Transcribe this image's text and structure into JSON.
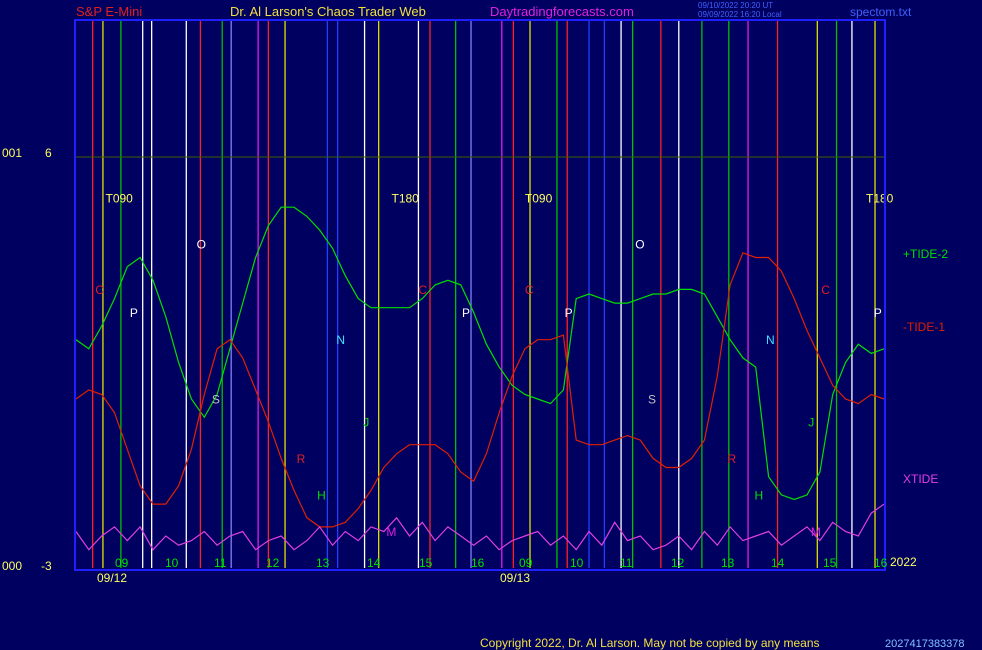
{
  "header": {
    "symbol": "S&P E-Mini",
    "title": "Dr. Al Larson's Chaos Trader Web",
    "site": "Daytradingforecasts.com",
    "stamp_line1": "09/10/2022 20:20 UT",
    "stamp_line2": "09/09/2022 16:20 Local",
    "file": "spectom.txt"
  },
  "footer": {
    "copyright": "Copyright 2022, Dr. Al Larson. May not be copied by any means",
    "corner": "2027417383378"
  },
  "colors": {
    "background": "#000060",
    "frame": "#2020ff",
    "tide_plus": "#00e000",
    "tide_minus": "#e02000",
    "xtide": "#e040e0",
    "header_red": "#e02020",
    "header_yellow": "#f0e040",
    "header_magenta": "#e020e0",
    "stamp_blue": "#4060ff"
  },
  "chart_data": {
    "type": "line",
    "yaxis": {
      "top_label": "6",
      "bottom_label": "-3",
      "top_left": "001",
      "bottom_left": "000",
      "ylim": [
        -3,
        6
      ]
    },
    "xaxis": {
      "hours": [
        "09",
        "10",
        "11",
        "12",
        "13",
        "14",
        "15",
        "16",
        "09",
        "10",
        "11",
        "12",
        "13",
        "14",
        "15",
        "16"
      ],
      "dates": [
        "09/12",
        "09/13"
      ],
      "year": "2022"
    },
    "series": [
      {
        "name": "+TIDE-2",
        "color": "#00e000",
        "values": [
          2.0,
          1.8,
          2.3,
          2.9,
          3.6,
          3.8,
          3.3,
          2.5,
          1.5,
          0.7,
          0.3,
          0.8,
          1.8,
          2.8,
          3.8,
          4.5,
          4.9,
          4.9,
          4.7,
          4.4,
          4.0,
          3.4,
          2.9,
          2.7,
          2.7,
          2.7,
          2.7,
          2.9,
          3.2,
          3.3,
          3.2,
          2.6,
          1.9,
          1.4,
          1.0,
          0.8,
          0.7,
          0.6,
          0.9,
          2.9,
          3.0,
          2.9,
          2.8,
          2.8,
          2.9,
          3.0,
          3.0,
          3.1,
          3.1,
          3.0,
          2.5,
          2.0,
          1.6,
          1.4,
          -1.0,
          -1.4,
          -1.5,
          -1.4,
          -0.9,
          0.8,
          1.5,
          1.9,
          1.7,
          1.8
        ]
      },
      {
        "name": "-TIDE-1",
        "color": "#e02000",
        "values": [
          0.7,
          0.9,
          0.8,
          0.4,
          -0.4,
          -1.2,
          -1.6,
          -1.6,
          -1.2,
          -0.4,
          0.8,
          1.8,
          2.0,
          1.6,
          0.9,
          0.2,
          -0.6,
          -1.3,
          -1.9,
          -2.1,
          -2.1,
          -2.0,
          -1.7,
          -1.3,
          -0.8,
          -0.5,
          -0.3,
          -0.3,
          -0.3,
          -0.5,
          -0.9,
          -1.1,
          -0.5,
          0.4,
          1.2,
          1.8,
          2.0,
          2.0,
          2.1,
          -0.2,
          -0.3,
          -0.3,
          -0.2,
          -0.1,
          -0.2,
          -0.6,
          -0.8,
          -0.8,
          -0.6,
          -0.2,
          1.2,
          3.2,
          3.9,
          3.8,
          3.8,
          3.5,
          2.9,
          2.2,
          1.6,
          1.0,
          0.7,
          0.6,
          0.8,
          0.7
        ]
      },
      {
        "name": "XTIDE",
        "color": "#e040e0",
        "values": [
          -2.2,
          -2.6,
          -2.3,
          -2.1,
          -2.4,
          -2.1,
          -2.6,
          -2.3,
          -2.5,
          -2.4,
          -2.2,
          -2.5,
          -2.3,
          -2.2,
          -2.6,
          -2.4,
          -2.3,
          -2.6,
          -2.4,
          -2.1,
          -2.5,
          -2.2,
          -2.4,
          -2.1,
          -2.2,
          -1.9,
          -2.3,
          -2.0,
          -2.4,
          -2.1,
          -2.3,
          -2.5,
          -2.3,
          -2.6,
          -2.4,
          -2.3,
          -2.2,
          -2.5,
          -2.3,
          -2.6,
          -2.2,
          -2.5,
          -2.0,
          -2.4,
          -2.3,
          -2.6,
          -2.5,
          -2.3,
          -2.6,
          -2.2,
          -2.5,
          -2.1,
          -2.4,
          -2.3,
          -2.2,
          -2.5,
          -2.3,
          -2.1,
          -2.4,
          -2.0,
          -2.2,
          -2.3,
          -1.8,
          -1.6
        ]
      }
    ],
    "vertical_lines": [
      {
        "x": 1.3,
        "color": "#ff2020"
      },
      {
        "x": 2.1,
        "color": "#e0e000"
      },
      {
        "x": 3.5,
        "color": "#00c000"
      },
      {
        "x": 5.2,
        "color": "#ffffff"
      },
      {
        "x": 5.9,
        "color": "#ffffff"
      },
      {
        "x": 8.6,
        "color": "#ffffff"
      },
      {
        "x": 9.7,
        "color": "#ff2020"
      },
      {
        "x": 11.4,
        "color": "#00c000"
      },
      {
        "x": 12.1,
        "color": "#8080ff"
      },
      {
        "x": 14.2,
        "color": "#e020e0"
      },
      {
        "x": 15.0,
        "color": "#ff2020"
      },
      {
        "x": 16.3,
        "color": "#e0e000"
      },
      {
        "x": 19.6,
        "color": "#2040ff"
      },
      {
        "x": 20.4,
        "color": "#2040ff"
      },
      {
        "x": 22.5,
        "color": "#ffffff"
      },
      {
        "x": 23.6,
        "color": "#e0e000"
      },
      {
        "x": 26.7,
        "color": "#ffffff"
      },
      {
        "x": 27.6,
        "color": "#ff2020"
      },
      {
        "x": 29.6,
        "color": "#00c000"
      },
      {
        "x": 30.8,
        "color": "#8080ff"
      },
      {
        "x": 33.2,
        "color": "#e020e0"
      },
      {
        "x": 34.1,
        "color": "#ff2020"
      },
      {
        "x": 35.4,
        "color": "#e0e000"
      },
      {
        "x": 37.5,
        "color": "#00c000"
      },
      {
        "x": 38.3,
        "color": "#ff2020"
      },
      {
        "x": 40.0,
        "color": "#2040ff"
      },
      {
        "x": 41.2,
        "color": "#2040ff"
      },
      {
        "x": 42.5,
        "color": "#ffffff"
      },
      {
        "x": 43.4,
        "color": "#00c000"
      },
      {
        "x": 45.6,
        "color": "#ff2020"
      },
      {
        "x": 47.0,
        "color": "#ffffff"
      },
      {
        "x": 48.8,
        "color": "#00c000"
      },
      {
        "x": 50.9,
        "color": "#00c000"
      },
      {
        "x": 52.4,
        "color": "#e020e0"
      },
      {
        "x": 54.7,
        "color": "#ff2020"
      },
      {
        "x": 57.8,
        "color": "#e0e000"
      },
      {
        "x": 59.3,
        "color": "#00c000"
      },
      {
        "x": 60.5,
        "color": "#ffffff"
      },
      {
        "x": 62.3,
        "color": "#e0e000"
      }
    ],
    "markers": [
      {
        "text": "T090",
        "x": 2.3,
        "y": 5.0,
        "color": "#ffff60"
      },
      {
        "text": "T180",
        "x": 24.6,
        "y": 5.0,
        "color": "#ffff60"
      },
      {
        "text": "T090",
        "x": 35.0,
        "y": 5.0,
        "color": "#ffff60"
      },
      {
        "text": "T180",
        "x": 61.6,
        "y": 5.0,
        "color": "#ffff60"
      },
      {
        "text": "C",
        "x": 1.5,
        "y": 3.0,
        "color": "#e02020"
      },
      {
        "text": "P",
        "x": 4.2,
        "y": 2.5,
        "color": "#ffffff"
      },
      {
        "text": "O",
        "x": 9.4,
        "y": 4.0,
        "color": "#ffffff"
      },
      {
        "text": "S",
        "x": 10.6,
        "y": 0.6,
        "color": "#c0c0c0"
      },
      {
        "text": "R",
        "x": 17.2,
        "y": -0.7,
        "color": "#e02020"
      },
      {
        "text": "H",
        "x": 18.8,
        "y": -1.5,
        "color": "#00e000"
      },
      {
        "text": "N",
        "x": 20.3,
        "y": 1.9,
        "color": "#40e0ff"
      },
      {
        "text": "M",
        "x": 24.2,
        "y": -2.3,
        "color": "#e020e0"
      },
      {
        "text": "J",
        "x": 22.4,
        "y": 0.1,
        "color": "#00e000"
      },
      {
        "text": "C",
        "x": 26.7,
        "y": 3.0,
        "color": "#e02020"
      },
      {
        "text": "P",
        "x": 30.1,
        "y": 2.5,
        "color": "#ffffff"
      },
      {
        "text": "C",
        "x": 35.0,
        "y": 3.0,
        "color": "#e02020"
      },
      {
        "text": "P",
        "x": 38.1,
        "y": 2.5,
        "color": "#ffffff"
      },
      {
        "text": "O",
        "x": 43.6,
        "y": 4.0,
        "color": "#ffffff"
      },
      {
        "text": "S",
        "x": 44.6,
        "y": 0.6,
        "color": "#c0c0c0"
      },
      {
        "text": "R",
        "x": 50.8,
        "y": -0.7,
        "color": "#e02020"
      },
      {
        "text": "H",
        "x": 52.9,
        "y": -1.5,
        "color": "#00e000"
      },
      {
        "text": "N",
        "x": 53.8,
        "y": 1.9,
        "color": "#40e0ff"
      },
      {
        "text": "J",
        "x": 57.1,
        "y": 0.1,
        "color": "#00e000"
      },
      {
        "text": "M",
        "x": 57.3,
        "y": -2.3,
        "color": "#e020e0"
      },
      {
        "text": "C",
        "x": 58.1,
        "y": 3.0,
        "color": "#e02020"
      },
      {
        "text": "P",
        "x": 62.2,
        "y": 2.5,
        "color": "#ffffff"
      }
    ]
  }
}
